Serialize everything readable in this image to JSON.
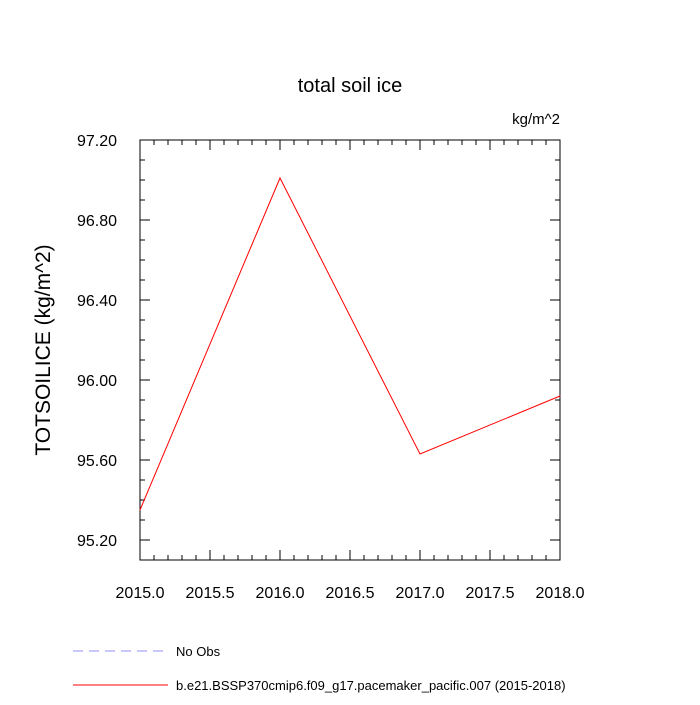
{
  "chart_data": {
    "type": "line",
    "title": "total soil ice",
    "units": "kg/m^2",
    "ylabel": "TOTSOILICE  (kg/m^2)",
    "xlabel": "",
    "xlim": [
      2015.0,
      2018.0
    ],
    "ylim": [
      95.1,
      97.2
    ],
    "x_ticks": [
      2015.0,
      2015.5,
      2016.0,
      2016.5,
      2017.0,
      2017.5,
      2018.0
    ],
    "x_tick_labels": [
      "2015.0",
      "2015.5",
      "2016.0",
      "2016.5",
      "2017.0",
      "2017.5",
      "2018.0"
    ],
    "y_ticks": [
      95.2,
      95.6,
      96.0,
      96.4,
      96.8,
      97.2
    ],
    "y_tick_labels": [
      "95.20",
      "95.60",
      "96.00",
      "96.40",
      "96.80",
      "97.20"
    ],
    "grid": false,
    "legend_position": "bottom",
    "series": [
      {
        "name": "No Obs",
        "color": "#8f8ff0",
        "dash": "dashed",
        "x": [],
        "y": []
      },
      {
        "name": "b.e21.BSSP370cmip6.f09_g17.pacemaker_pacific.007 (2015-2018)",
        "color": "#ff0000",
        "dash": "solid",
        "x": [
          2015.0,
          2016.0,
          2017.0,
          2018.0
        ],
        "y": [
          95.35,
          97.01,
          95.63,
          95.92
        ]
      }
    ]
  }
}
